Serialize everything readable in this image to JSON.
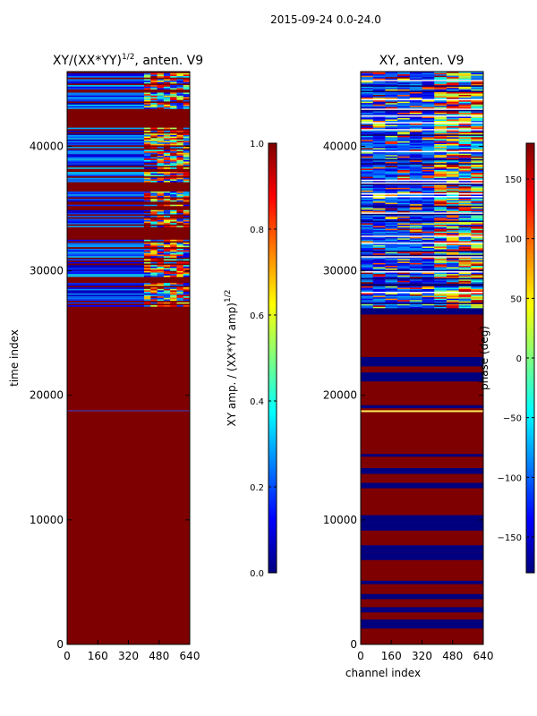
{
  "figure": {
    "suptitle": "2015-09-24 0.0-24.0"
  },
  "colors": {
    "dark_red": "#7f0000",
    "dark_blue": "#00007f",
    "jet_stops": [
      "#00007f",
      "#0000ff",
      "#007fff",
      "#00ffff",
      "#7fff7f",
      "#ffff00",
      "#ff7f00",
      "#ff0000",
      "#7f0000"
    ]
  },
  "chart_data": [
    {
      "type": "heatmap",
      "title": "XY/(XX*YY)^1/2, anten. V9",
      "title_main": "XY/(XX*YY)",
      "title_sup": "1/2",
      "title_tail": ", anten. V9",
      "xlabel": "",
      "ylabel": "time index",
      "xlim": [
        0,
        640
      ],
      "ylim": [
        0,
        46000
      ],
      "xticks": [
        0,
        160,
        320,
        480,
        640
      ],
      "yticks": [
        0,
        10000,
        20000,
        30000,
        40000
      ],
      "description_bands": [
        {
          "from": 0,
          "to": 27000,
          "value": 1.0
        },
        {
          "from": 27000,
          "to": 32500,
          "value": "mixed"
        },
        {
          "from": 32500,
          "to": 46000,
          "value": "mixed"
        }
      ],
      "colorbar": {
        "label_main": "XY amp. / (XX*YY amp)",
        "label_sup": "1/2",
        "min": 0.0,
        "max": 1.0,
        "ticks": [
          "0.0",
          "0.2",
          "0.4",
          "0.6",
          "0.8",
          "1.0"
        ],
        "tick_values": [
          0.0,
          0.2,
          0.4,
          0.6,
          0.8,
          1.0
        ]
      }
    },
    {
      "type": "heatmap",
      "title": "XY, anten. V9",
      "xlabel": "channel index",
      "ylabel": "",
      "xlim": [
        0,
        640
      ],
      "ylim": [
        0,
        46000
      ],
      "xticks": [
        0,
        160,
        320,
        480,
        640
      ],
      "yticks": [
        0,
        10000,
        20000,
        30000,
        40000
      ],
      "colorbar": {
        "label": "phase (deg)",
        "min": -180,
        "max": 180,
        "ticks": [
          "−150",
          "−100",
          "−50",
          "0",
          "50",
          "100",
          "150"
        ],
        "tick_values": [
          -150,
          -100,
          -50,
          0,
          50,
          100,
          150
        ]
      }
    }
  ]
}
